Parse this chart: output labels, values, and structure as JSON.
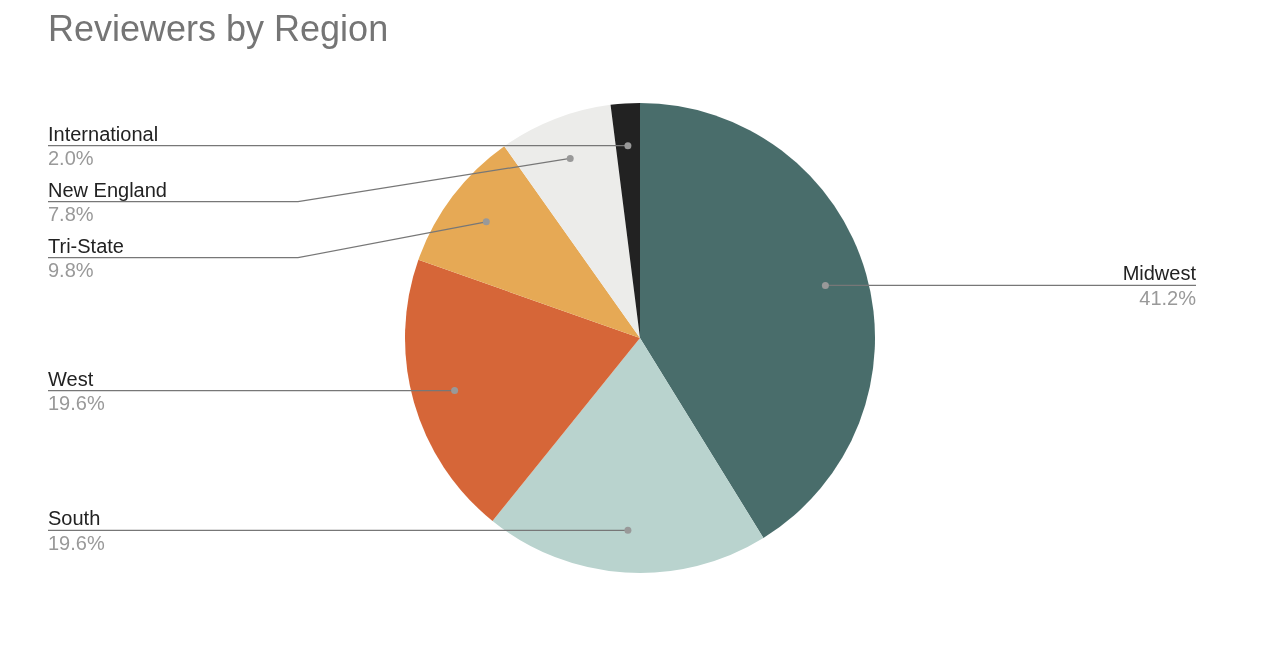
{
  "chart_data": {
    "type": "pie",
    "title": "Reviewers by Region",
    "categories": [
      "Midwest",
      "South",
      "West",
      "Tri-State",
      "New England",
      "International"
    ],
    "values": [
      41.2,
      19.6,
      19.6,
      9.8,
      7.8,
      2.0
    ],
    "value_labels": [
      "41.2%",
      "19.6%",
      "19.6%",
      "9.8%",
      "7.8%",
      "2.0%"
    ],
    "colors": [
      "#496d6b",
      "#b9d3ce",
      "#d66638",
      "#e6a955",
      "#ececea",
      "#222222"
    ],
    "legend": false
  }
}
